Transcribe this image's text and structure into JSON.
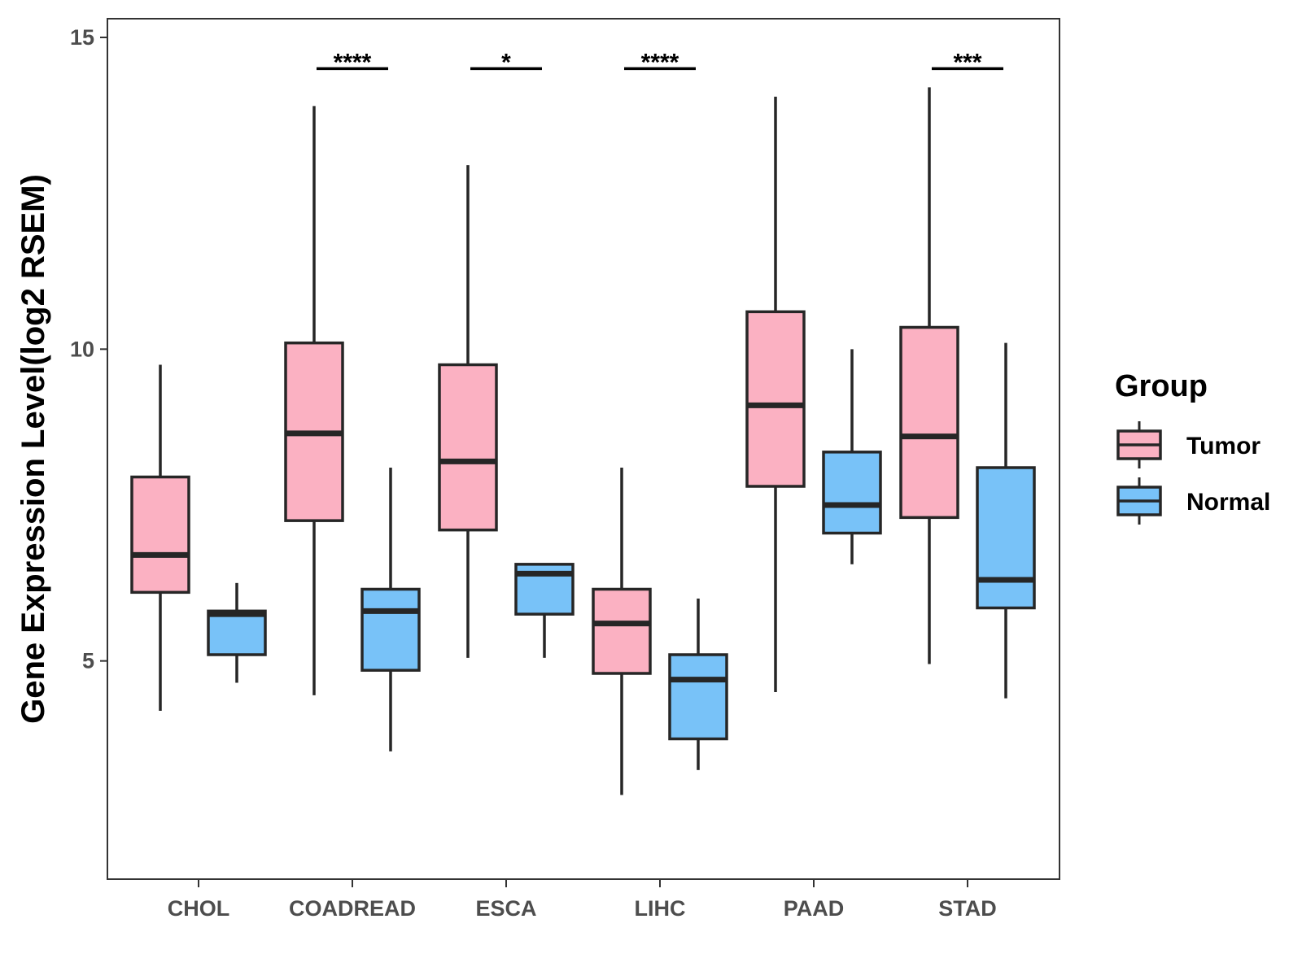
{
  "chart_data": {
    "type": "boxplot",
    "title": "",
    "xlabel": "",
    "ylabel": "Gene Expression Level(log2 RSEM)",
    "ylim": [
      1.5,
      15.3
    ],
    "yticks": [
      5,
      10,
      15
    ],
    "grid": false,
    "legend": {
      "title": "Group",
      "position": "right",
      "entries": [
        {
          "name": "Tumor",
          "color": "#FBB1C2"
        },
        {
          "name": "Normal",
          "color": "#78C2F8"
        }
      ]
    },
    "categories": [
      "CHOL",
      "COADREAD",
      "ESCA",
      "LIHC",
      "PAAD",
      "STAD"
    ],
    "series": [
      {
        "name": "Tumor",
        "color": "#FBB1C2",
        "boxes": [
          {
            "min": 4.2,
            "q1": 6.1,
            "median": 6.7,
            "q3": 7.95,
            "max": 9.75
          },
          {
            "min": 4.45,
            "q1": 7.25,
            "median": 8.65,
            "q3": 10.1,
            "max": 13.9
          },
          {
            "min": 5.05,
            "q1": 7.1,
            "median": 8.2,
            "q3": 9.75,
            "max": 12.95
          },
          {
            "min": 2.85,
            "q1": 4.8,
            "median": 5.6,
            "q3": 6.15,
            "max": 8.1
          },
          {
            "min": 4.5,
            "q1": 7.8,
            "median": 9.1,
            "q3": 10.6,
            "max": 14.05
          },
          {
            "min": 4.95,
            "q1": 7.3,
            "median": 8.6,
            "q3": 10.35,
            "max": 14.2
          }
        ]
      },
      {
        "name": "Normal",
        "color": "#78C2F8",
        "boxes": [
          {
            "min": 4.65,
            "q1": 5.1,
            "median": 5.75,
            "q3": 5.8,
            "max": 6.25
          },
          {
            "min": 3.55,
            "q1": 4.85,
            "median": 5.8,
            "q3": 6.15,
            "max": 8.1
          },
          {
            "min": 5.05,
            "q1": 5.75,
            "median": 6.4,
            "q3": 6.55,
            "max": 6.55
          },
          {
            "min": 3.25,
            "q1": 3.75,
            "median": 4.7,
            "q3": 5.1,
            "max": 6.0
          },
          {
            "min": 6.55,
            "q1": 7.05,
            "median": 7.5,
            "q3": 8.35,
            "max": 10.0
          },
          {
            "min": 4.4,
            "q1": 5.85,
            "median": 6.3,
            "q3": 8.1,
            "max": 10.1
          }
        ]
      }
    ],
    "annotations": [
      {
        "category": "COADREAD",
        "label": "****",
        "y": 14.5
      },
      {
        "category": "ESCA",
        "label": "*",
        "y": 14.5
      },
      {
        "category": "LIHC",
        "label": "****",
        "y": 14.5
      },
      {
        "category": "STAD",
        "label": "***",
        "y": 14.5
      }
    ]
  }
}
